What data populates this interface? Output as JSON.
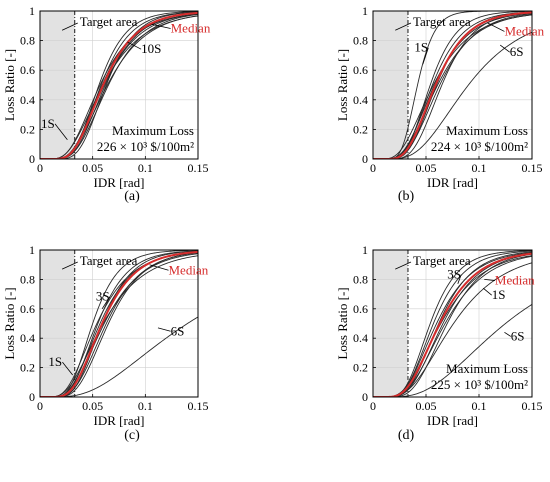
{
  "colors": {
    "curves": "#2b2b2b",
    "median": "#d62c2c",
    "median_label": "#d62c2c",
    "target_shade": "#e2e2e2",
    "axis": "#000000",
    "grid": "#d0d0d0"
  },
  "chart_data": [
    {
      "type": "line",
      "panel_label": "(a)",
      "xlabel": "IDR [rad]",
      "ylabel": "Loss Ratio [-]",
      "xlim": [
        0,
        0.15
      ],
      "ylim": [
        0,
        1
      ],
      "xticks": [
        0,
        0.05,
        0.1,
        0.15
      ],
      "xtick_labels": [
        "0",
        "0.05",
        "0.1",
        "0.15"
      ],
      "yticks": [
        0,
        0.2,
        0.4,
        0.6,
        0.8,
        1
      ],
      "ytick_labels": [
        "0",
        "0.2",
        "0.4",
        "0.6",
        "0.8",
        "1"
      ],
      "grid": true,
      "target_area": {
        "x_end": 0.033,
        "label": "Target area"
      },
      "median": {
        "label": "Median",
        "theta": 0.06,
        "beta": 0.41
      },
      "curves": [
        {
          "theta": 0.056,
          "beta": 0.36
        },
        {
          "theta": 0.058,
          "beta": 0.38
        },
        {
          "theta": 0.059,
          "beta": 0.42
        },
        {
          "theta": 0.061,
          "beta": 0.44
        },
        {
          "theta": 0.062,
          "beta": 0.4
        },
        {
          "theta": 0.064,
          "beta": 0.46
        },
        {
          "theta": 0.057,
          "beta": 0.47
        },
        {
          "theta": 0.063,
          "beta": 0.35
        },
        {
          "theta": 0.06,
          "beta": 0.5
        },
        {
          "theta": 0.065,
          "beta": 0.42
        }
      ],
      "annotations": [
        {
          "text": "1S",
          "x": 0.001,
          "y": 0.21,
          "ptr_x": 0.026,
          "ptr_y": 0.13
        },
        {
          "text": "10S",
          "x": 0.096,
          "y": 0.715,
          "ptr_x": 0.083,
          "ptr_y": 0.79
        },
        {
          "text": "Median",
          "x": 0.124,
          "y": 0.855,
          "ptr_x": 0.106,
          "ptr_y": 0.91,
          "color": "median"
        }
      ],
      "max_loss": {
        "line1": "Maximum Loss",
        "line2": "226 × 10³ $/100m²"
      }
    },
    {
      "type": "line",
      "panel_label": "(b)",
      "xlabel": "IDR [rad]",
      "ylabel": "Loss Ratio [-]",
      "xlim": [
        0,
        0.15
      ],
      "ylim": [
        0,
        1
      ],
      "xticks": [
        0,
        0.05,
        0.1,
        0.15
      ],
      "xtick_labels": [
        "0",
        "0.05",
        "0.1",
        "0.15"
      ],
      "yticks": [
        0,
        0.2,
        0.4,
        0.6,
        0.8,
        1
      ],
      "ytick_labels": [
        "0",
        "0.2",
        "0.4",
        "0.6",
        "0.8",
        "1"
      ],
      "grid": true,
      "target_area": {
        "x_end": 0.033,
        "label": "Target area"
      },
      "median": {
        "label": "Median",
        "theta": 0.059,
        "beta": 0.4
      },
      "curves": [
        {
          "theta": 0.042,
          "beta": 0.3
        },
        {
          "theta": 0.054,
          "beta": 0.36
        },
        {
          "theta": 0.056,
          "beta": 0.4
        },
        {
          "theta": 0.058,
          "beta": 0.44
        },
        {
          "theta": 0.06,
          "beta": 0.38
        },
        {
          "theta": 0.061,
          "beta": 0.46
        },
        {
          "theta": 0.063,
          "beta": 0.42
        },
        {
          "theta": 0.065,
          "beta": 0.36
        },
        {
          "theta": 0.057,
          "beta": 0.5
        },
        {
          "theta": 0.09,
          "beta": 0.48
        }
      ],
      "annotations": [
        {
          "text": "1S",
          "x": 0.039,
          "y": 0.725,
          "ptr_x": 0.047,
          "ptr_y": 0.64
        },
        {
          "text": "Median",
          "x": 0.124,
          "y": 0.835,
          "ptr_x": 0.108,
          "ptr_y": 0.92,
          "color": "median"
        },
        {
          "text": "6S",
          "x": 0.129,
          "y": 0.695,
          "ptr_x": 0.12,
          "ptr_y": 0.77
        }
      ],
      "max_loss": {
        "line1": "Maximum Loss",
        "line2": "224 × 10³ $/100m²"
      }
    },
    {
      "type": "line",
      "panel_label": "(c)",
      "xlabel": "IDR [rad]",
      "ylabel": "Loss Ratio [-]",
      "xlim": [
        0,
        0.15
      ],
      "ylim": [
        0,
        1
      ],
      "xticks": [
        0,
        0.05,
        0.1,
        0.15
      ],
      "xtick_labels": [
        "0",
        "0.05",
        "0.1",
        "0.15"
      ],
      "yticks": [
        0,
        0.2,
        0.4,
        0.6,
        0.8,
        1
      ],
      "ytick_labels": [
        "0",
        "0.2",
        "0.4",
        "0.6",
        "0.8",
        "1"
      ],
      "grid": true,
      "target_area": {
        "x_end": 0.033,
        "label": "Target area"
      },
      "median": {
        "label": "Median",
        "theta": 0.059,
        "beta": 0.42
      },
      "curves": [
        {
          "theta": 0.05,
          "beta": 0.38
        },
        {
          "theta": 0.055,
          "beta": 0.4
        },
        {
          "theta": 0.057,
          "beta": 0.44
        },
        {
          "theta": 0.059,
          "beta": 0.38
        },
        {
          "theta": 0.061,
          "beta": 0.46
        },
        {
          "theta": 0.063,
          "beta": 0.42
        },
        {
          "theta": 0.065,
          "beta": 0.4
        },
        {
          "theta": 0.06,
          "beta": 0.52
        },
        {
          "theta": 0.054,
          "beta": 0.48
        },
        {
          "theta": 0.14,
          "beta": 0.62
        }
      ],
      "annotations": [
        {
          "text": "1S",
          "x": 0.008,
          "y": 0.21,
          "ptr_x": 0.031,
          "ptr_y": 0.15
        },
        {
          "text": "3S",
          "x": 0.053,
          "y": 0.655,
          "ptr_x": 0.059,
          "ptr_y": 0.6
        },
        {
          "text": "Median",
          "x": 0.122,
          "y": 0.835,
          "ptr_x": 0.104,
          "ptr_y": 0.9,
          "color": "median"
        },
        {
          "text": "6S",
          "x": 0.124,
          "y": 0.42,
          "ptr_x": 0.112,
          "ptr_y": 0.47
        }
      ]
    },
    {
      "type": "line",
      "panel_label": "(d)",
      "xlabel": "IDR [rad]",
      "ylabel": "Loss Ratio [-]",
      "xlim": [
        0,
        0.15
      ],
      "ylim": [
        0,
        1
      ],
      "xticks": [
        0,
        0.05,
        0.1,
        0.15
      ],
      "xtick_labels": [
        "0",
        "0.05",
        "0.1",
        "0.15"
      ],
      "yticks": [
        0,
        0.2,
        0.4,
        0.6,
        0.8,
        1
      ],
      "ytick_labels": [
        "0",
        "0.2",
        "0.4",
        "0.6",
        "0.8",
        "1"
      ],
      "grid": true,
      "target_area": {
        "x_end": 0.033,
        "label": "Target area"
      },
      "median": {
        "label": "Median",
        "theta": 0.063,
        "beta": 0.44
      },
      "curves": [
        {
          "theta": 0.054,
          "beta": 0.38
        },
        {
          "theta": 0.057,
          "beta": 0.4
        },
        {
          "theta": 0.06,
          "beta": 0.44
        },
        {
          "theta": 0.062,
          "beta": 0.4
        },
        {
          "theta": 0.064,
          "beta": 0.48
        },
        {
          "theta": 0.066,
          "beta": 0.42
        },
        {
          "theta": 0.068,
          "beta": 0.46
        },
        {
          "theta": 0.07,
          "beta": 0.4
        },
        {
          "theta": 0.076,
          "beta": 0.5
        },
        {
          "theta": 0.125,
          "beta": 0.55
        }
      ],
      "annotations": [
        {
          "text": "3S",
          "x": 0.07,
          "y": 0.805,
          "ptr_x": 0.08,
          "ptr_y": 0.77
        },
        {
          "text": "Median",
          "x": 0.115,
          "y": 0.765,
          "ptr_x": 0.105,
          "ptr_y": 0.8,
          "color": "median"
        },
        {
          "text": "1S",
          "x": 0.112,
          "y": 0.665,
          "ptr_x": 0.104,
          "ptr_y": 0.74
        },
        {
          "text": "6S",
          "x": 0.13,
          "y": 0.385,
          "ptr_x": 0.124,
          "ptr_y": 0.44
        }
      ],
      "max_loss": {
        "line1": "Maximum Loss",
        "line2": "225 × 10³ $/100m²"
      }
    }
  ]
}
